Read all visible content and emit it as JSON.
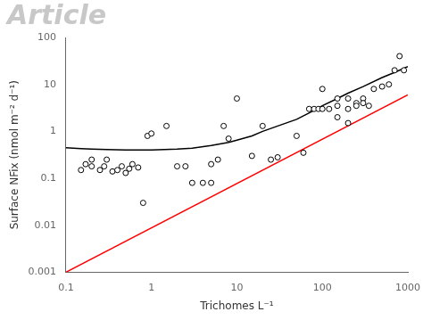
{
  "chart_data": {
    "type": "scatter",
    "xlabel": "Trichomes L⁻¹",
    "ylabel": "Surface NFix (nmol m⁻² d⁻¹)",
    "log": true,
    "grid": false,
    "xlim": [
      0.1,
      1000
    ],
    "ylim": [
      0.001,
      100
    ],
    "xticks": [
      0.1,
      1,
      10,
      100,
      1000
    ],
    "yticks": [
      0.001,
      0.01,
      0.1,
      1,
      10,
      100
    ],
    "annotations": [
      {
        "text": "Article",
        "color": "#c8c8c8"
      }
    ],
    "series": [
      {
        "type": "line",
        "color": "red",
        "line_style": "solid",
        "x": [
          0.1,
          1000.0
        ],
        "values": [
          0.001,
          6.0
        ]
      },
      {
        "type": "line",
        "color": "black",
        "line_style": "solid",
        "x": [
          0.1,
          0.15,
          0.2,
          0.3,
          0.5,
          0.7,
          1.0,
          2.0,
          3.0,
          5.0,
          8.0,
          10.0,
          15.0,
          20.0,
          30.0,
          50.0,
          80.0,
          100.0,
          150.0,
          200.0,
          300.0,
          500.0,
          700.0,
          1000.0
        ],
        "values": [
          0.45,
          0.43,
          0.42,
          0.41,
          0.4,
          0.4,
          0.4,
          0.42,
          0.44,
          0.5,
          0.58,
          0.65,
          0.8,
          1.0,
          1.3,
          1.8,
          2.8,
          3.5,
          5.0,
          6.5,
          9.0,
          14.0,
          18.0,
          24.0
        ]
      },
      {
        "type": "scatter",
        "color": "black",
        "marker": "circle",
        "x": [
          0.15,
          0.17,
          0.2,
          0.2,
          0.25,
          0.28,
          0.3,
          0.35,
          0.4,
          0.45,
          0.5,
          0.55,
          0.6,
          0.7,
          0.8,
          0.9,
          1.0,
          1.5,
          2.0,
          2.5,
          3.0,
          4.0,
          5.0,
          5.0,
          6.0,
          7.0,
          8.0,
          10.0,
          15.0,
          20.0,
          25.0,
          30.0,
          50.0,
          60.0,
          70.0,
          80.0,
          90.0,
          100.0,
          100.0,
          120.0,
          150.0,
          150.0,
          150.0,
          200.0,
          200.0,
          200.0,
          250.0,
          250.0,
          300.0,
          300.0,
          350.0,
          400.0,
          500.0,
          600.0,
          700.0,
          800.0,
          900.0
        ],
        "values": [
          0.15,
          0.2,
          0.18,
          0.25,
          0.15,
          0.18,
          0.25,
          0.14,
          0.15,
          0.18,
          0.13,
          0.16,
          0.2,
          0.17,
          0.03,
          0.8,
          0.9,
          1.3,
          0.18,
          0.18,
          0.08,
          0.08,
          0.08,
          0.2,
          0.25,
          1.3,
          0.7,
          5.0,
          0.3,
          1.3,
          0.25,
          0.28,
          0.8,
          0.35,
          3.0,
          3.0,
          3.0,
          3.0,
          8.0,
          3.0,
          2.0,
          3.5,
          5.0,
          1.5,
          3.0,
          5.0,
          4.0,
          3.5,
          5.0,
          4.0,
          3.5,
          8.0,
          9.0,
          10.0,
          20.0,
          40.0,
          20.0
        ]
      }
    ]
  }
}
